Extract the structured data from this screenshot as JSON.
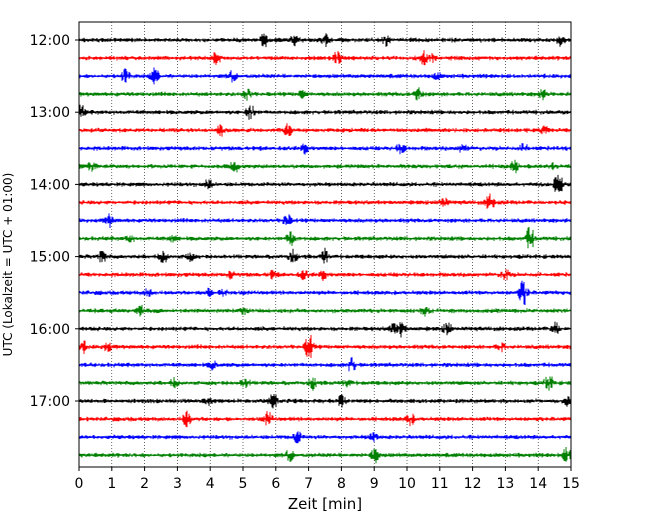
{
  "chart_data": {
    "type": "line",
    "title": "",
    "xlabel": "Zeit  [min]",
    "ylabel": "UTC (Lokalzeit = UTC + 01:00)",
    "xlim": [
      0,
      15
    ],
    "x_ticks": [
      "0",
      "1",
      "2",
      "3",
      "4",
      "5",
      "6",
      "7",
      "8",
      "9",
      "10",
      "11",
      "12",
      "13",
      "14",
      "15"
    ],
    "y_tick_labels": [
      "12:00",
      "13:00",
      "14:00",
      "15:00",
      "16:00",
      "17:00"
    ],
    "grid": "vertical dotted at each minute",
    "trace_colors": [
      "#000000",
      "#ff0000",
      "#0000ff",
      "#008000"
    ],
    "traces": [
      {
        "start": "12:00"
      },
      {
        "start": "12:15"
      },
      {
        "start": "12:30"
      },
      {
        "start": "12:45"
      },
      {
        "start": "13:00"
      },
      {
        "start": "13:15"
      },
      {
        "start": "13:30"
      },
      {
        "start": "13:45"
      },
      {
        "start": "14:00"
      },
      {
        "start": "14:15"
      },
      {
        "start": "14:30"
      },
      {
        "start": "14:45"
      },
      {
        "start": "15:00"
      },
      {
        "start": "15:15"
      },
      {
        "start": "15:30"
      },
      {
        "start": "15:45"
      },
      {
        "start": "16:00"
      },
      {
        "start": "16:15"
      },
      {
        "start": "16:30"
      },
      {
        "start": "16:45"
      },
      {
        "start": "17:00"
      },
      {
        "start": "17:15"
      },
      {
        "start": "17:30"
      },
      {
        "start": "17:45"
      }
    ]
  }
}
